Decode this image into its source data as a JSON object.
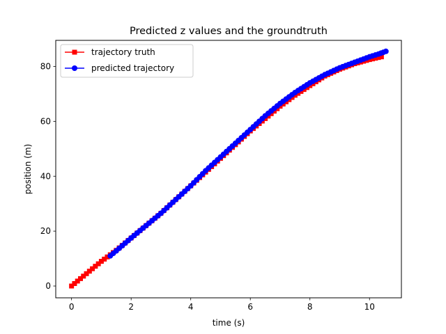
{
  "chart_data": {
    "type": "line",
    "title": "Predicted z values and the groundtruth",
    "xlabel": "time (s)",
    "ylabel": "position (m)",
    "xlim": [
      -0.53,
      11.07
    ],
    "ylim": [
      -4.3,
      89.5
    ],
    "xticks": [
      0,
      2,
      4,
      6,
      8,
      10
    ],
    "yticks": [
      0,
      20,
      40,
      60,
      80
    ],
    "xtick_labels": [
      "0",
      "2",
      "4",
      "6",
      "8",
      "10"
    ],
    "ytick_labels": [
      "0",
      "20",
      "40",
      "60",
      "80"
    ],
    "grid": false,
    "legend_position": "upper left",
    "series": [
      {
        "name": "trajectory truth",
        "color": "#ff0000",
        "marker": "square",
        "x": [
          0.0,
          0.5,
          1.0,
          1.5,
          2.0,
          2.5,
          3.0,
          3.5,
          4.0,
          4.5,
          5.0,
          5.5,
          6.0,
          6.5,
          7.0,
          7.5,
          8.0,
          8.5,
          9.0,
          9.5,
          10.0,
          10.4
        ],
        "y": [
          0.0,
          4.5,
          9.0,
          13.0,
          17.5,
          22.0,
          26.5,
          31.5,
          36.5,
          41.5,
          46.5,
          51.5,
          56.5,
          61.0,
          65.5,
          69.5,
          73.0,
          76.5,
          79.0,
          81.0,
          82.5,
          83.5
        ]
      },
      {
        "name": "predicted trajectory",
        "color": "#0000ff",
        "marker": "circle",
        "x": [
          1.3,
          1.5,
          2.0,
          2.5,
          3.0,
          3.5,
          4.0,
          4.5,
          5.0,
          5.5,
          6.0,
          6.5,
          7.0,
          7.5,
          8.0,
          8.5,
          9.0,
          9.5,
          10.0,
          10.3,
          10.55
        ],
        "y": [
          11.0,
          12.8,
          17.5,
          22.0,
          26.5,
          31.5,
          36.5,
          42.0,
          47.0,
          52.0,
          57.0,
          62.0,
          66.5,
          70.5,
          74.0,
          77.0,
          79.5,
          81.5,
          83.5,
          84.5,
          85.5
        ]
      }
    ]
  }
}
